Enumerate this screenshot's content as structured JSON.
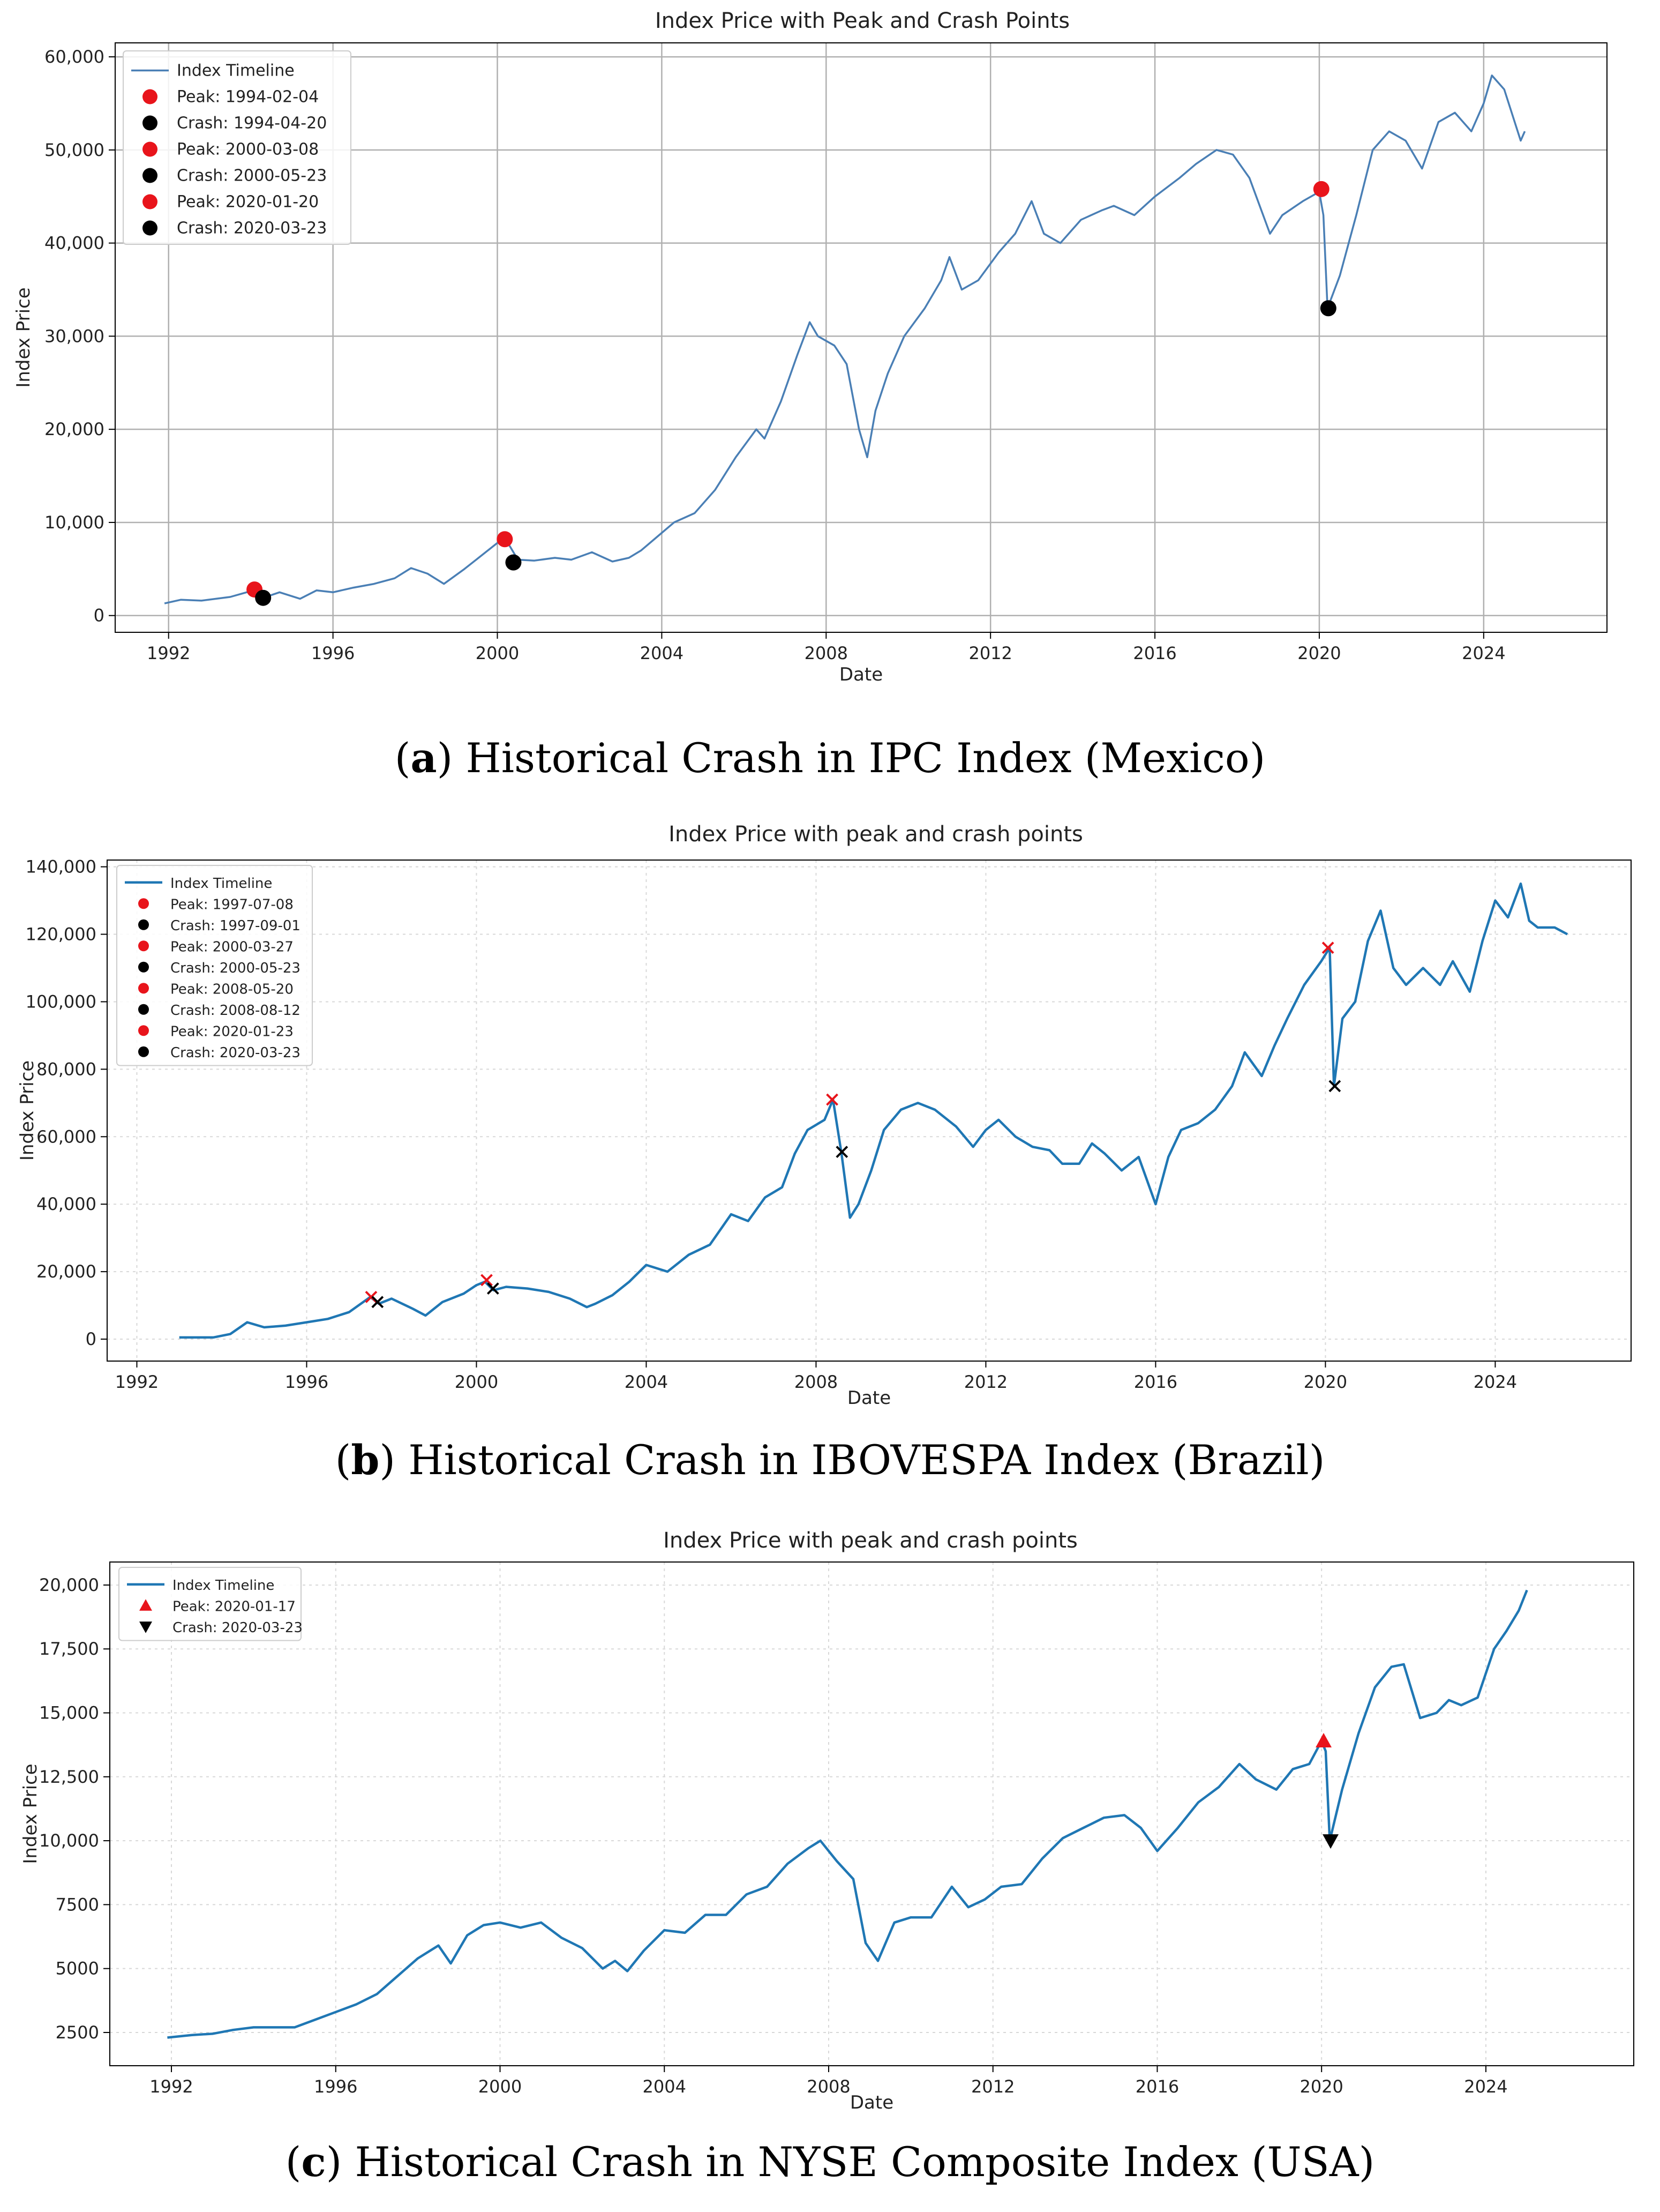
{
  "chart_data": [
    {
      "type": "line",
      "title": "Index Price with Peak and Crash Points",
      "xlabel": "Date",
      "ylabel": "Index Price",
      "caption_letter": "a",
      "caption_text": " Historical Crash in IPC Index (Mexico)",
      "xlim": [
        1990.7,
        2027.0
      ],
      "ylim": [
        -1800,
        61500
      ],
      "x_ticks": [
        1992,
        1996,
        2000,
        2004,
        2008,
        2012,
        2016,
        2020,
        2024
      ],
      "y_ticks": [
        0,
        10000,
        20000,
        30000,
        40000,
        50000,
        60000
      ],
      "y_tick_labels": [
        "0",
        "10,000",
        "20,000",
        "30,000",
        "40,000",
        "50,000",
        "60,000"
      ],
      "grid": "solid",
      "legend_position": "top-left",
      "line_color": "#4a7fb5",
      "series": [
        {
          "name": "Index Timeline",
          "x": [
            1991.9,
            1992.3,
            1992.8,
            1993.5,
            1993.9,
            1994.1,
            1994.3,
            1994.7,
            1995.2,
            1995.6,
            1996.0,
            1996.5,
            1997.0,
            1997.5,
            1997.9,
            1998.3,
            1998.7,
            1999.2,
            1999.6,
            2000.0,
            2000.2,
            2000.5,
            2000.9,
            2001.4,
            2001.8,
            2002.3,
            2002.8,
            2003.2,
            2003.5,
            2003.9,
            2004.3,
            2004.8,
            2005.3,
            2005.8,
            2006.3,
            2006.5,
            2006.9,
            2007.3,
            2007.6,
            2007.8,
            2008.2,
            2008.5,
            2008.8,
            2009.0,
            2009.2,
            2009.5,
            2009.9,
            2010.4,
            2010.8,
            2011.0,
            2011.3,
            2011.7,
            2012.2,
            2012.6,
            2013.0,
            2013.3,
            2013.7,
            2014.2,
            2014.7,
            2015.0,
            2015.5,
            2016.0,
            2016.6,
            2017.0,
            2017.5,
            2017.9,
            2018.3,
            2018.8,
            2019.1,
            2019.6,
            2020.0,
            2020.1,
            2020.2,
            2020.5,
            2020.9,
            2021.3,
            2021.7,
            2022.1,
            2022.5,
            2022.9,
            2023.3,
            2023.7,
            2024.0,
            2024.2,
            2024.5,
            2024.9,
            2025.0
          ],
          "y": [
            1300,
            1700,
            1600,
            2000,
            2500,
            2800,
            1900,
            2500,
            1800,
            2700,
            2500,
            3000,
            3400,
            4000,
            5100,
            4500,
            3400,
            5000,
            6400,
            7800,
            8200,
            6000,
            5900,
            6200,
            6000,
            6800,
            5800,
            6200,
            7000,
            8500,
            10000,
            11000,
            13500,
            17000,
            20000,
            19000,
            23000,
            28000,
            31500,
            30000,
            29000,
            27000,
            20000,
            17000,
            22000,
            26000,
            30000,
            33000,
            36000,
            38500,
            35000,
            36000,
            39000,
            41000,
            44500,
            41000,
            40000,
            42500,
            43500,
            44000,
            43000,
            45000,
            47000,
            48500,
            50000,
            49500,
            47000,
            41000,
            43000,
            44500,
            45500,
            43000,
            33000,
            36500,
            43000,
            50000,
            52000,
            51000,
            48000,
            53000,
            54000,
            52000,
            55000,
            58000,
            56500,
            51000,
            52000
          ]
        }
      ],
      "markers": [
        {
          "label": "Peak: 1994-02-04",
          "kind": "peak",
          "symbol": "dot",
          "x": 1994.09,
          "y": 2800
        },
        {
          "label": "Crash: 1994-04-20",
          "kind": "crash",
          "symbol": "dot",
          "x": 1994.3,
          "y": 1900
        },
        {
          "label": "Peak: 2000-03-08",
          "kind": "peak",
          "symbol": "dot",
          "x": 2000.18,
          "y": 8200
        },
        {
          "label": "Crash: 2000-05-23",
          "kind": "crash",
          "symbol": "dot",
          "x": 2000.39,
          "y": 5700
        },
        {
          "label": "Peak: 2020-01-20",
          "kind": "peak",
          "symbol": "dot",
          "x": 2020.05,
          "y": 45800
        },
        {
          "label": "Crash: 2020-03-23",
          "kind": "crash",
          "symbol": "dot",
          "x": 2020.22,
          "y": 33000
        }
      ]
    },
    {
      "type": "line",
      "title": "Index Price with peak and crash points",
      "xlabel": "Date",
      "ylabel": "Index Price",
      "caption_letter": "b",
      "caption_text": " Historical Crash in IBOVESPA Index (Brazil)",
      "xlim": [
        1991.3,
        2027.2
      ],
      "ylim": [
        -6500,
        142000
      ],
      "x_ticks": [
        1992,
        1996,
        2000,
        2004,
        2008,
        2012,
        2016,
        2020,
        2024
      ],
      "y_ticks": [
        0,
        20000,
        40000,
        60000,
        80000,
        100000,
        120000,
        140000
      ],
      "y_tick_labels": [
        "0",
        "20,000",
        "40,000",
        "60,000",
        "80,000",
        "100,000",
        "120,000",
        "140,000"
      ],
      "grid": "dotted",
      "legend_position": "top-left",
      "line_color": "#1f77b4",
      "series": [
        {
          "name": "Index Timeline",
          "x": [
            1993.0,
            1993.8,
            1994.2,
            1994.6,
            1995.0,
            1995.5,
            1996.0,
            1996.5,
            1997.0,
            1997.5,
            1997.7,
            1998.0,
            1998.5,
            1998.8,
            1999.2,
            1999.7,
            2000.0,
            2000.2,
            2000.4,
            2000.7,
            2001.2,
            2001.7,
            2002.2,
            2002.6,
            2002.8,
            2003.2,
            2003.6,
            2004.0,
            2004.5,
            2005.0,
            2005.5,
            2006.0,
            2006.4,
            2006.8,
            2007.2,
            2007.5,
            2007.8,
            2008.2,
            2008.4,
            2008.6,
            2008.8,
            2009.0,
            2009.3,
            2009.6,
            2010.0,
            2010.4,
            2010.8,
            2011.3,
            2011.7,
            2012.0,
            2012.3,
            2012.7,
            2013.1,
            2013.5,
            2013.8,
            2014.2,
            2014.5,
            2014.8,
            2015.2,
            2015.6,
            2016.0,
            2016.3,
            2016.6,
            2017.0,
            2017.4,
            2017.8,
            2018.1,
            2018.5,
            2018.8,
            2019.1,
            2019.5,
            2019.9,
            2020.1,
            2020.2,
            2020.4,
            2020.7,
            2021.0,
            2021.3,
            2021.6,
            2021.9,
            2022.3,
            2022.7,
            2023.0,
            2023.4,
            2023.7,
            2024.0,
            2024.3,
            2024.6,
            2024.8,
            2025.0,
            2025.4,
            2025.7
          ],
          "y": [
            500,
            500,
            1500,
            5000,
            3500,
            4000,
            5000,
            6000,
            8000,
            12500,
            10500,
            12000,
            9000,
            7000,
            11000,
            13500,
            16000,
            17000,
            14500,
            15500,
            15000,
            14000,
            12000,
            9500,
            10500,
            13000,
            17000,
            22000,
            20000,
            25000,
            28000,
            37000,
            35000,
            42000,
            45000,
            55000,
            62000,
            65000,
            71000,
            55000,
            36000,
            40000,
            50000,
            62000,
            68000,
            70000,
            68000,
            63000,
            57000,
            62000,
            65000,
            60000,
            57000,
            56000,
            52000,
            52000,
            58000,
            55000,
            50000,
            54000,
            40000,
            54000,
            62000,
            64000,
            68000,
            75000,
            85000,
            78000,
            87000,
            95000,
            105000,
            112000,
            116000,
            75000,
            95000,
            100000,
            118000,
            127000,
            110000,
            105000,
            110000,
            105000,
            112000,
            103000,
            118000,
            130000,
            125000,
            135000,
            124000,
            122000,
            122000,
            120000
          ]
        }
      ],
      "markers": [
        {
          "label": "Peak: 1997-07-08",
          "kind": "peak",
          "symbol": "x",
          "x": 1997.52,
          "y": 12500
        },
        {
          "label": "Crash: 1997-09-01",
          "kind": "crash",
          "symbol": "x",
          "x": 1997.67,
          "y": 11000
        },
        {
          "label": "Peak: 2000-03-27",
          "kind": "peak",
          "symbol": "x",
          "x": 2000.24,
          "y": 17500
        },
        {
          "label": "Crash: 2000-05-23",
          "kind": "crash",
          "symbol": "x",
          "x": 2000.39,
          "y": 15000
        },
        {
          "label": "Peak: 2008-05-20",
          "kind": "peak",
          "symbol": "x",
          "x": 2008.38,
          "y": 71000
        },
        {
          "label": "Crash: 2008-08-12",
          "kind": "crash",
          "symbol": "x",
          "x": 2008.61,
          "y": 55500
        },
        {
          "label": "Peak: 2020-01-23",
          "kind": "peak",
          "symbol": "x",
          "x": 2020.06,
          "y": 116000
        },
        {
          "label": "Crash: 2020-03-23",
          "kind": "crash",
          "symbol": "x",
          "x": 2020.22,
          "y": 75000
        }
      ]
    },
    {
      "type": "line",
      "title": "Index Price with peak and crash points",
      "xlabel": "Date",
      "ylabel": "Index Price",
      "caption_letter": "c",
      "caption_text": " Historical Crash in NYSE Composite Index (USA)",
      "xlim": [
        1990.5,
        2027.6
      ],
      "ylim": [
        1200,
        20900
      ],
      "x_ticks": [
        1992,
        1996,
        2000,
        2004,
        2008,
        2012,
        2016,
        2020,
        2024
      ],
      "y_ticks": [
        2500,
        5000,
        7500,
        10000,
        12500,
        15000,
        17500,
        20000
      ],
      "y_tick_labels": [
        "2500",
        "5000",
        "7500",
        "10,000",
        "12,500",
        "15,000",
        "17,500",
        "20,000"
      ],
      "grid": "dotted",
      "legend_position": "top-left",
      "line_color": "#1f77b4",
      "series": [
        {
          "name": "Index Timeline",
          "x": [
            1991.9,
            1992.5,
            1993.0,
            1993.5,
            1994.0,
            1994.5,
            1995.0,
            1995.5,
            1996.0,
            1996.5,
            1997.0,
            1997.5,
            1998.0,
            1998.5,
            1998.8,
            1999.2,
            1999.6,
            2000.0,
            2000.5,
            2001.0,
            2001.5,
            2002.0,
            2002.5,
            2002.8,
            2003.1,
            2003.5,
            2004.0,
            2004.5,
            2005.0,
            2005.5,
            2006.0,
            2006.5,
            2007.0,
            2007.5,
            2007.8,
            2008.2,
            2008.6,
            2008.9,
            2009.2,
            2009.6,
            2010.0,
            2010.5,
            2011.0,
            2011.4,
            2011.8,
            2012.2,
            2012.7,
            2013.2,
            2013.7,
            2014.2,
            2014.7,
            2015.2,
            2015.6,
            2016.0,
            2016.5,
            2017.0,
            2017.5,
            2018.0,
            2018.4,
            2018.9,
            2019.3,
            2019.7,
            2020.0,
            2020.1,
            2020.2,
            2020.5,
            2020.9,
            2021.3,
            2021.7,
            2022.0,
            2022.4,
            2022.8,
            2023.1,
            2023.4,
            2023.8,
            2024.2,
            2024.5,
            2024.8,
            2025.0
          ],
          "y": [
            2300,
            2400,
            2450,
            2600,
            2700,
            2700,
            2700,
            3000,
            3300,
            3600,
            4000,
            4700,
            5400,
            5900,
            5200,
            6300,
            6700,
            6800,
            6600,
            6800,
            6200,
            5800,
            5000,
            5300,
            4900,
            5700,
            6500,
            6400,
            7100,
            7100,
            7900,
            8200,
            9100,
            9700,
            10000,
            9200,
            8500,
            6000,
            5300,
            6800,
            7000,
            7000,
            8200,
            7400,
            7700,
            8200,
            8300,
            9300,
            10100,
            10500,
            10900,
            11000,
            10500,
            9600,
            10500,
            11500,
            12100,
            13000,
            12400,
            12000,
            12800,
            13000,
            13900,
            13500,
            10000,
            12000,
            14200,
            16000,
            16800,
            16900,
            14800,
            15000,
            15500,
            15300,
            15600,
            17500,
            18200,
            19000,
            19800
          ]
        }
      ],
      "markers": [
        {
          "label": "Peak: 2020-01-17",
          "kind": "peak",
          "symbol": "triangle-up",
          "x": 2020.05,
          "y": 13900
        },
        {
          "label": "Crash: 2020-03-23",
          "kind": "crash",
          "symbol": "triangle-down",
          "x": 2020.22,
          "y": 10000
        }
      ]
    }
  ]
}
